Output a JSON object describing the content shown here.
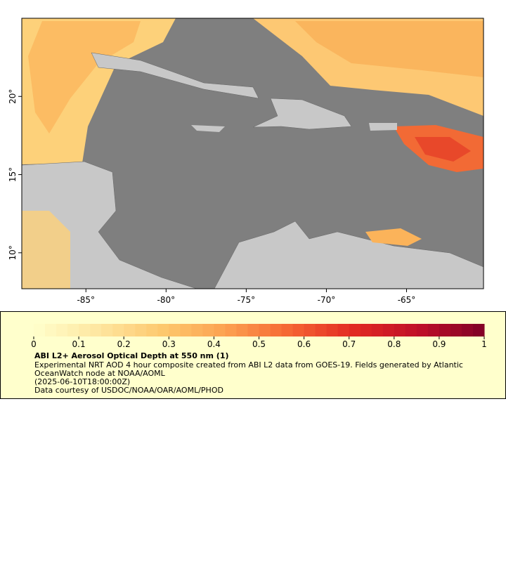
{
  "map": {
    "xlim": [
      -89,
      -60.2
    ],
    "ylim": [
      7.7,
      25
    ],
    "xticks": [
      {
        "value": -85,
        "label": "-85°"
      },
      {
        "value": -80,
        "label": "-80°"
      },
      {
        "value": -75,
        "label": "-75°"
      },
      {
        "value": -70,
        "label": "-70°"
      },
      {
        "value": -65,
        "label": "-65°"
      }
    ],
    "yticks": [
      {
        "value": 10,
        "label": "10°"
      },
      {
        "value": 15,
        "label": "15°"
      },
      {
        "value": 20,
        "label": "20°"
      }
    ]
  },
  "colorbar": {
    "lim": [
      0,
      1
    ],
    "ticks": [
      0,
      0.1,
      0.2,
      0.3,
      0.4,
      0.5,
      0.6,
      0.7,
      0.8,
      0.9,
      1
    ]
  },
  "legend": {
    "title": "ABI L2+ Aerosol Optical Depth at 550 nm (1)",
    "description": "Experimental NRT AOD 4 hour composite created from ABI L2 data from GOES-19. Fields generated by Atlantic OceanWatch node at NOAA/AOML",
    "time": "(2025-06-10T18:00:00Z)",
    "credit": "Data courtesy of USDOC/NOAA/OAR/AOML/PHOD"
  }
}
